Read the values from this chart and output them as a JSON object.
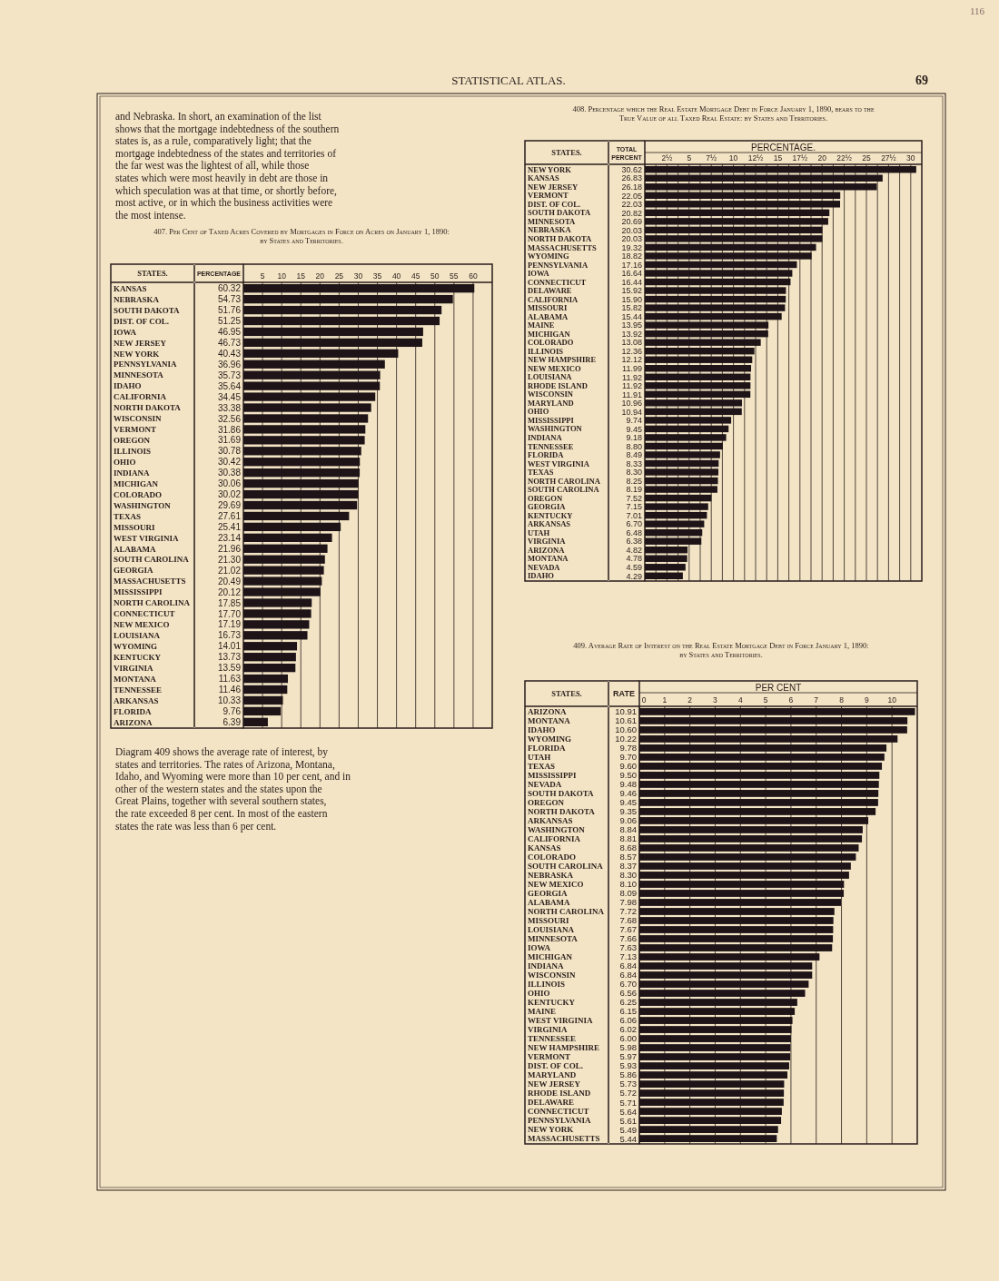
{
  "chart_data": [
    {
      "type": "bar",
      "orientation": "horizontal",
      "title": "407. Per Cent of Taxed Acres Covered by Mortgages in Force on Acres on January 1, 1890: by States and Territories.",
      "ylabel": "STATES.",
      "color": "#1e1418",
      "grid": "x",
      "xlim": [
        0,
        65
      ],
      "xticks": [
        5,
        10,
        15,
        20,
        25,
        30,
        35,
        40,
        45,
        50,
        55,
        60
      ],
      "categories": [
        "KANSAS",
        "NEBRASKA",
        "SOUTH DAKOTA",
        "DIST. OF COL.",
        "IOWA",
        "NEW JERSEY",
        "NEW YORK",
        "PENNSYLVANIA",
        "MINNESOTA",
        "IDAHO",
        "CALIFORNIA",
        "NORTH DAKOTA",
        "WISCONSIN",
        "VERMONT",
        "OREGON",
        "ILLINOIS",
        "OHIO",
        "INDIANA",
        "MICHIGAN",
        "COLORADO",
        "WASHINGTON",
        "TEXAS",
        "MISSOURI",
        "WEST VIRGINIA",
        "ALABAMA",
        "SOUTH CAROLINA",
        "GEORGIA",
        "MASSACHUSETTS",
        "MISSISSIPPI",
        "NORTH CAROLINA",
        "CONNECTICUT",
        "NEW MEXICO",
        "LOUISIANA",
        "WYOMING",
        "KENTUCKY",
        "VIRGINIA",
        "MONTANA",
        "TENNESSEE",
        "ARKANSAS",
        "FLORIDA",
        "ARIZONA"
      ],
      "values": [
        60.32,
        54.73,
        51.76,
        51.25,
        46.95,
        46.73,
        40.43,
        36.96,
        35.73,
        35.64,
        34.45,
        33.38,
        32.56,
        31.86,
        31.69,
        30.78,
        30.42,
        30.38,
        30.06,
        30.02,
        29.69,
        27.61,
        25.41,
        23.14,
        21.96,
        21.3,
        21.02,
        20.49,
        20.12,
        17.85,
        17.7,
        17.19,
        16.73,
        14.01,
        13.73,
        13.59,
        11.63,
        11.46,
        10.33,
        9.76,
        6.39
      ],
      "value_labels": [
        "60.32",
        "54.73",
        "51.76",
        "51.25",
        "46.95",
        "46.73",
        "40.43",
        "36.96",
        "35.73",
        "35.64",
        "34.45",
        "33.38",
        "32.56",
        "31.86",
        "31.69",
        "30.78",
        "30.42",
        "30.38",
        "30.06",
        "30.02",
        "29.69",
        "27.61",
        "25.41",
        "23.14",
        "21.96",
        "21.30",
        "21.02",
        "20.49",
        "20.12",
        "17.85",
        "17.70",
        "17.19",
        "16.73",
        "14.01",
        "13.73",
        "13.59",
        "11.63",
        "11.46",
        "10.33",
        "9.76",
        "6.39"
      ],
      "annotations": [
        "PERCENTAGE",
        "and Nebraska. In short, an examination of the list shows that the mortgage indebtedness of the southern states is, as a rule, comparatively light; that the mortgage indebtedness of the states and territories of the far west was the lightest of all, while those states which were most heavily in debt are those in which speculation was at that time, or shortly before, most active, or in which the business activities were the most intense.",
        "Diagram 409 shows the average rate of interest, by states and territories. The rates of Arizona, Montana, Idaho, and Wyoming were more than 10 per cent, and in other of the western states and the states upon the Great Plains, together with several southern states, the rate exceeded 8 per cent. In most of the eastern states the rate was less than 6 per cent."
      ]
    },
    {
      "type": "bar",
      "orientation": "horizontal",
      "title": "408. Percentage which the Real Estate Mortgage Debt in Force January 1, 1890, bears to the True Value of all Taxed Real Estate: by States and Territories.",
      "ylabel": "STATES.",
      "xlabel": "PERCENTAGE.",
      "color": "#1e1418",
      "grid": "x",
      "xlim": [
        0,
        31.25
      ],
      "xticks": [
        {
          "value": 1.25,
          "label": null
        },
        {
          "value": 2.5,
          "label": "2½"
        },
        {
          "value": 3.75,
          "label": null
        },
        5,
        {
          "value": 6.25,
          "label": null
        },
        {
          "value": 7.5,
          "label": "7½"
        },
        {
          "value": 8.75,
          "label": null
        },
        10,
        {
          "value": 11.25,
          "label": null
        },
        {
          "value": 12.5,
          "label": "12½"
        },
        {
          "value": 13.75,
          "label": null
        },
        15,
        {
          "value": 16.25,
          "label": null
        },
        {
          "value": 17.5,
          "label": "17½"
        },
        {
          "value": 18.75,
          "label": null
        },
        20,
        {
          "value": 21.25,
          "label": null
        },
        {
          "value": 22.5,
          "label": "22½"
        },
        {
          "value": 23.75,
          "label": null
        },
        25,
        {
          "value": 26.25,
          "label": null
        },
        {
          "value": 27.5,
          "label": "27½"
        },
        {
          "value": 28.75,
          "label": null
        },
        30
      ],
      "categories": [
        "NEW YORK",
        "KANSAS",
        "NEW JERSEY",
        "VERMONT",
        "DIST. OF COL.",
        "SOUTH DAKOTA",
        "MINNESOTA",
        "NEBRASKA",
        "NORTH DAKOTA",
        "MASSACHUSETTS",
        "WYOMING",
        "PENNSYLVANIA",
        "IOWA",
        "CONNECTICUT",
        "DELAWARE",
        "CALIFORNIA",
        "MISSOURI",
        "ALABAMA",
        "MAINE",
        "MICHIGAN",
        "COLORADO",
        "ILLINOIS",
        "NEW HAMPSHIRE",
        "NEW MEXICO",
        "LOUISIANA",
        "RHODE ISLAND",
        "WISCONSIN",
        "MARYLAND",
        "OHIO",
        "MISSISSIPPI",
        "WASHINGTON",
        "INDIANA",
        "TENNESSEE",
        "FLORIDA",
        "WEST VIRGINIA",
        "TEXAS",
        "NORTH CAROLINA",
        "SOUTH CAROLINA",
        "OREGON",
        "GEORGIA",
        "KENTUCKY",
        "ARKANSAS",
        "UTAH",
        "VIRGINIA",
        "ARIZONA",
        "MONTANA",
        "NEVADA",
        "IDAHO"
      ],
      "values": [
        30.62,
        26.83,
        26.18,
        22.05,
        22.03,
        20.82,
        20.69,
        20.03,
        20.03,
        19.32,
        18.82,
        17.16,
        16.64,
        16.44,
        15.92,
        15.9,
        15.82,
        15.44,
        13.95,
        13.92,
        13.08,
        12.36,
        12.12,
        11.99,
        11.92,
        11.92,
        11.91,
        10.96,
        10.94,
        9.74,
        9.45,
        9.18,
        8.8,
        8.49,
        8.33,
        8.3,
        8.25,
        8.19,
        7.52,
        7.15,
        7.01,
        6.7,
        6.48,
        6.38,
        4.82,
        4.78,
        4.59,
        4.29
      ],
      "value_labels": [
        "30.62",
        "26.83",
        "26.18",
        "22.05",
        "22.03",
        "20.82",
        "20.69",
        "20.03",
        "20.03",
        "19.32",
        "18.82",
        "17.16",
        "16.64",
        "16.44",
        "15.92",
        "15.90",
        "15.82",
        "15.44",
        "13.95",
        "13.92",
        "13.08",
        "12.36",
        "12.12",
        "11.99",
        "11.92",
        "11.92",
        "11.91",
        "10.96",
        "10.94",
        "9.74",
        "9.45",
        "9.18",
        "8.80",
        "8.49",
        "8.33",
        "8.30",
        "8.25",
        "8.19",
        "7.52",
        "7.15",
        "7.01",
        "6.70",
        "6.48",
        "6.38",
        "4.82",
        "4.78",
        "4.59",
        "4.29"
      ],
      "annotations": [
        "TOTAL PERCENT",
        "STATISTICAL ATLAS.",
        "69",
        "116"
      ]
    },
    {
      "type": "bar",
      "orientation": "horizontal",
      "title": "409. Average Rate of Interest on the Real Estate Mortgage Debt in Force January 1, 1890: by States and Territories.",
      "ylabel": "STATES.",
      "xlabel": "PER CENT",
      "color": "#1e1418",
      "grid": "x",
      "xlim": [
        0,
        11
      ],
      "xticks": [
        0,
        1,
        2,
        3,
        4,
        5,
        6,
        7,
        8,
        9,
        10
      ],
      "categories": [
        "ARIZONA",
        "MONTANA",
        "IDAHO",
        "WYOMING",
        "FLORIDA",
        "UTAH",
        "TEXAS",
        "MISSISSIPPI",
        "NEVADA",
        "SOUTH DAKOTA",
        "OREGON",
        "NORTH DAKOTA",
        "ARKANSAS",
        "WASHINGTON",
        "CALIFORNIA",
        "KANSAS",
        "COLORADO",
        "SOUTH CAROLINA",
        "NEBRASKA",
        "NEW MEXICO",
        "GEORGIA",
        "ALABAMA",
        "NORTH CAROLINA",
        "MISSOURI",
        "LOUISIANA",
        "MINNESOTA",
        "IOWA",
        "MICHIGAN",
        "INDIANA",
        "WISCONSIN",
        "ILLINOIS",
        "OHIO",
        "KENTUCKY",
        "MAINE",
        "WEST VIRGINIA",
        "VIRGINIA",
        "TENNESSEE",
        "NEW HAMPSHIRE",
        "VERMONT",
        "DIST. OF COL.",
        "MARYLAND",
        "NEW JERSEY",
        "RHODE ISLAND",
        "DELAWARE",
        "CONNECTICUT",
        "PENNSYLVANIA",
        "NEW YORK",
        "MASSACHUSETTS"
      ],
      "values": [
        10.91,
        10.61,
        10.6,
        10.22,
        9.78,
        9.7,
        9.6,
        9.5,
        9.48,
        9.46,
        9.45,
        9.35,
        9.06,
        8.84,
        8.81,
        8.68,
        8.57,
        8.37,
        8.3,
        8.1,
        8.09,
        7.98,
        7.72,
        7.68,
        7.67,
        7.66,
        7.63,
        7.13,
        6.84,
        6.84,
        6.7,
        6.56,
        6.25,
        6.15,
        6.06,
        6.02,
        6.0,
        5.98,
        5.97,
        5.93,
        5.86,
        5.73,
        5.72,
        5.71,
        5.64,
        5.61,
        5.49,
        5.44
      ],
      "value_labels": [
        "10.91",
        "10.61",
        "10.60",
        "10.22",
        "9.78",
        "9.70",
        "9.60",
        "9.50",
        "9.48",
        "9.46",
        "9.45",
        "9.35",
        "9.06",
        "8.84",
        "8.81",
        "8.68",
        "8.57",
        "8.37",
        "8.30",
        "8.10",
        "8.09",
        "7.98",
        "7.72",
        "7.68",
        "7.67",
        "7.66",
        "7.63",
        "7.13",
        "6.84",
        "6.84",
        "6.70",
        "6.56",
        "6.25",
        "6.15",
        "6.06",
        "6.02",
        "6.00",
        "5.98",
        "5.97",
        "5.93",
        "5.86",
        "5.73",
        "5.72",
        "5.71",
        "5.64",
        "5.61",
        "5.49",
        "5.44"
      ],
      "annotations": [
        "RATE"
      ]
    }
  ]
}
